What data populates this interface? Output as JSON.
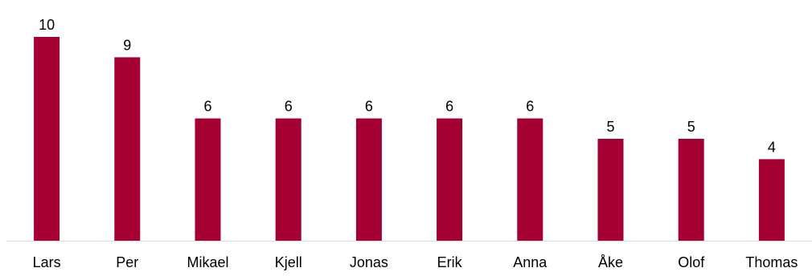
{
  "chart_data": {
    "type": "bar",
    "categories": [
      "Lars",
      "Per",
      "Mikael",
      "Kjell",
      "Jonas",
      "Erik",
      "Anna",
      "Åke",
      "Olof",
      "Thomas"
    ],
    "values": [
      10,
      9,
      6,
      6,
      6,
      6,
      6,
      5,
      5,
      4
    ],
    "title": "",
    "xlabel": "",
    "ylabel": "",
    "ylim": [
      0,
      10
    ],
    "grid": false,
    "legend": "none",
    "data_labels": true,
    "colors": {
      "bar": "#A50034",
      "baseline": "#D9D9D9",
      "text": "#000000"
    }
  }
}
